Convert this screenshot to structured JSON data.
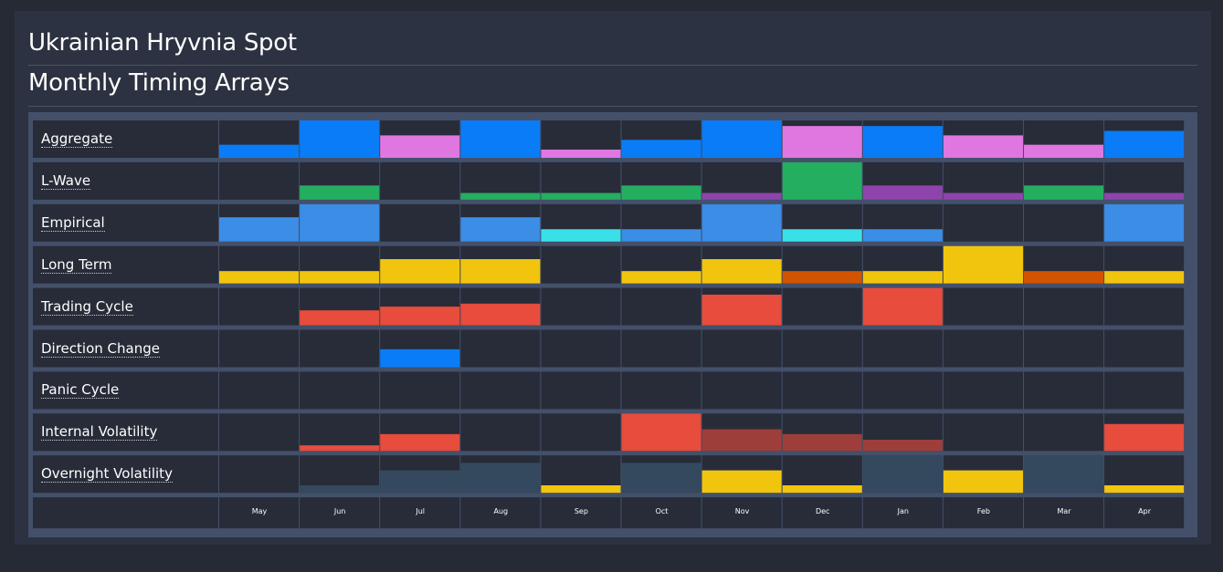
{
  "header": {
    "title": "Ukrainian Hryvnia Spot",
    "subtitle": "Monthly Timing Arrays"
  },
  "colors": {
    "background": "#252a35",
    "panel": "#2c3241",
    "cell": "#272c38",
    "grid_line": "#44506a"
  },
  "chart_data": {
    "type": "heatmap",
    "value_scale": "bar height as fraction of cell height (0-1)",
    "months": [
      "May",
      "Jun",
      "Jul",
      "Aug",
      "Sep",
      "Oct",
      "Nov",
      "Dec",
      "Jan",
      "Feb",
      "Mar",
      "Apr"
    ],
    "rows": [
      {
        "label": "Aggregate",
        "values": [
          0.35,
          1.0,
          0.6,
          1.0,
          0.22,
          0.48,
          1.0,
          0.85,
          0.85,
          0.6,
          0.35,
          0.72
        ],
        "colors": [
          "#0a7cf7",
          "#0a7cf7",
          "#e077e0",
          "#0a7cf7",
          "#e077e0",
          "#0a7cf7",
          "#0a7cf7",
          "#e077e0",
          "#0a7cf7",
          "#e077e0",
          "#e077e0",
          "#0a7cf7"
        ]
      },
      {
        "label": "L-Wave",
        "values": [
          0,
          0.38,
          0,
          0.18,
          0.18,
          0.38,
          0.18,
          1.0,
          0.38,
          0.18,
          0.38,
          0.18
        ],
        "colors": [
          "#24ae60",
          "#24ae60",
          "#24ae60",
          "#24ae60",
          "#24ae60",
          "#24ae60",
          "#8e44ad",
          "#24ae60",
          "#8e44ad",
          "#8e44ad",
          "#24ae60",
          "#8e44ad"
        ]
      },
      {
        "label": "Empirical",
        "values": [
          0.65,
          1.0,
          0,
          0.65,
          0.33,
          0.33,
          1.0,
          0.33,
          0.33,
          0,
          0,
          1.0
        ],
        "colors": [
          "#3b8de5",
          "#3b8de5",
          "#3b8de5",
          "#3b8de5",
          "#3ae0e8",
          "#3b8de5",
          "#3b8de5",
          "#3ae0e8",
          "#3b8de5",
          "#3b8de5",
          "#3b8de5",
          "#3b8de5"
        ]
      },
      {
        "label": "Long Term",
        "values": [
          0.33,
          0.33,
          0.65,
          0.65,
          0,
          0.33,
          0.65,
          0.33,
          0.33,
          1.0,
          0.33,
          0.33
        ],
        "colors": [
          "#f1c50e",
          "#f1c50e",
          "#f1c50e",
          "#f1c50e",
          "#f1c50e",
          "#f1c50e",
          "#f1c50e",
          "#d35400",
          "#f1c50e",
          "#f1c50e",
          "#d35400",
          "#f1c50e"
        ]
      },
      {
        "label": "Trading Cycle",
        "values": [
          0,
          0.4,
          0.5,
          0.58,
          0,
          0,
          0.82,
          0,
          1.0,
          0,
          0,
          0
        ],
        "colors": [
          "#e74c3c",
          "#e74c3c",
          "#e74c3c",
          "#e74c3c",
          "#e74c3c",
          "#e74c3c",
          "#e74c3c",
          "#e74c3c",
          "#e74c3c",
          "#e74c3c",
          "#e74c3c",
          "#e74c3c"
        ]
      },
      {
        "label": "Direction Change",
        "values": [
          0,
          0,
          0.48,
          0,
          0,
          0,
          0,
          0,
          0,
          0,
          0,
          0
        ],
        "colors": [
          "#0a7cf7",
          "#0a7cf7",
          "#0a7cf7",
          "#0a7cf7",
          "#0a7cf7",
          "#0a7cf7",
          "#0a7cf7",
          "#0a7cf7",
          "#0a7cf7",
          "#0a7cf7",
          "#0a7cf7",
          "#0a7cf7"
        ]
      },
      {
        "label": "Panic Cycle",
        "values": [
          0,
          0,
          0,
          0,
          0,
          0,
          0,
          0,
          0,
          0,
          0,
          0
        ],
        "colors": [
          "#e74c3c",
          "#e74c3c",
          "#e74c3c",
          "#e74c3c",
          "#e74c3c",
          "#e74c3c",
          "#e74c3c",
          "#e74c3c",
          "#e74c3c",
          "#e74c3c",
          "#e74c3c",
          "#e74c3c"
        ]
      },
      {
        "label": "Internal Volatility",
        "values": [
          0,
          0.15,
          0.45,
          0,
          0,
          1.0,
          0.58,
          0.45,
          0.3,
          0,
          0,
          0.72
        ],
        "colors": [
          "#e74c3c",
          "#e74c3c",
          "#e74c3c",
          "#e74c3c",
          "#e74c3c",
          "#e74c3c",
          "#9e3e3a",
          "#9e3e3a",
          "#9e3e3a",
          "#e74c3c",
          "#e74c3c",
          "#e74c3c"
        ]
      },
      {
        "label": "Overnight Volatility",
        "values": [
          0,
          0.2,
          0.6,
          0.8,
          0.2,
          0.8,
          0.6,
          0.2,
          1.0,
          0.6,
          1.0,
          0.2
        ],
        "colors": [
          "#34495e",
          "#34495e",
          "#34495e",
          "#34495e",
          "#f1c50e",
          "#34495e",
          "#f1c50e",
          "#f1c50e",
          "#34495e",
          "#f1c50e",
          "#34495e",
          "#f1c50e"
        ]
      }
    ]
  }
}
